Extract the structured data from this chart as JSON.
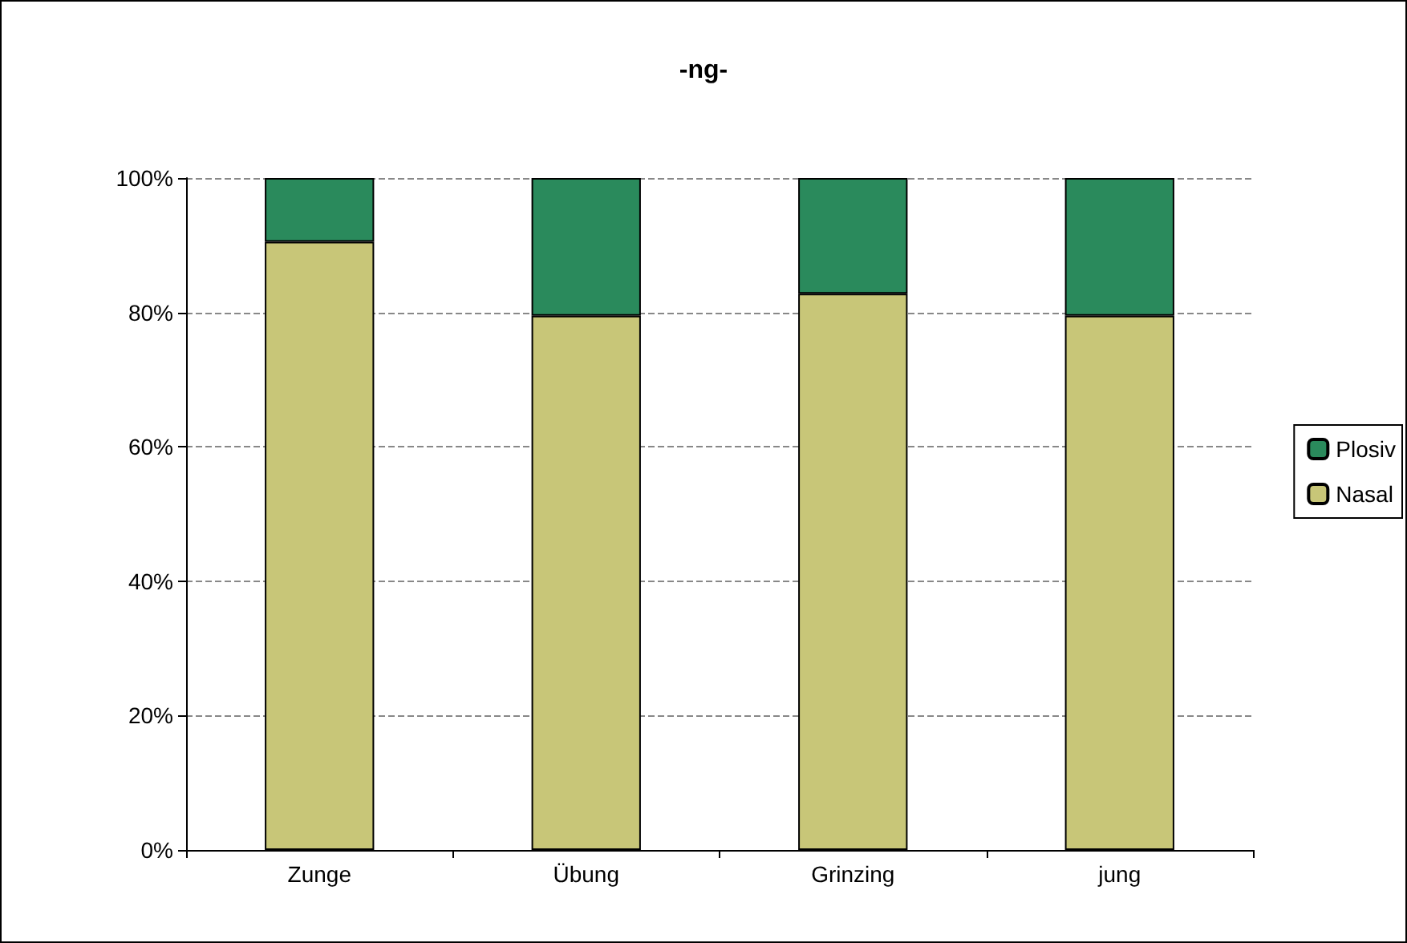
{
  "chart_data": {
    "type": "bar",
    "title": "-ng-",
    "categories": [
      "Zunge",
      "Übung",
      "Grinzing",
      "jung"
    ],
    "stacked": true,
    "series": [
      {
        "name": "Nasal",
        "color": "#c8c678",
        "values": [
          90.5,
          79.5,
          82.8,
          79.5
        ]
      },
      {
        "name": "Plosiv",
        "color": "#2a8a5c",
        "values": [
          9.5,
          20.5,
          17.2,
          20.5
        ]
      }
    ],
    "ylim": [
      0,
      100
    ],
    "yticks": [
      {
        "value": 0,
        "label": "0%"
      },
      {
        "value": 20,
        "label": "20%"
      },
      {
        "value": 40,
        "label": "40%"
      },
      {
        "value": 60,
        "label": "60%"
      },
      {
        "value": 80,
        "label": "80%"
      },
      {
        "value": 100,
        "label": "100%"
      }
    ],
    "grid": "y",
    "legend": "right"
  }
}
